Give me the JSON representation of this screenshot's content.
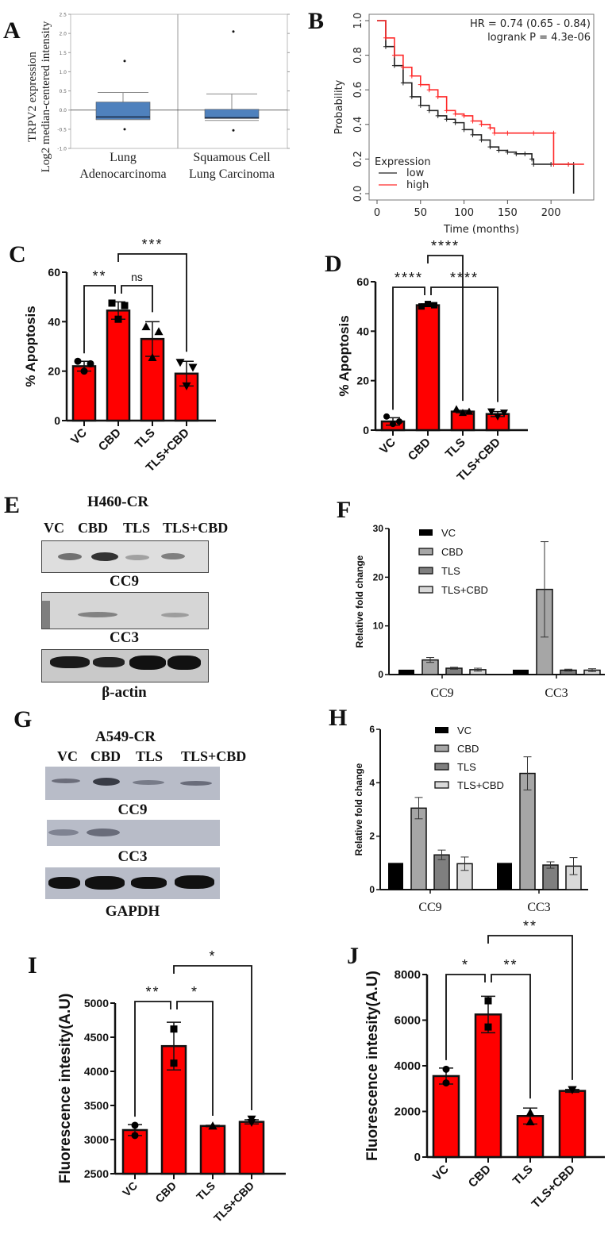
{
  "panels": {
    "A": {
      "label": "A"
    },
    "B": {
      "label": "B"
    },
    "C": {
      "label": "C"
    },
    "D": {
      "label": "D"
    },
    "E": {
      "label": "E"
    },
    "F": {
      "label": "F"
    },
    "G": {
      "label": "G"
    },
    "H": {
      "label": "H"
    },
    "I": {
      "label": "I"
    },
    "J": {
      "label": "J"
    }
  },
  "blots": {
    "E": {
      "title": "H460-CR",
      "lanes": [
        "VC",
        "CBD",
        "TLS",
        "TLS+CBD"
      ],
      "rows": [
        "CC9",
        "CC3",
        "β-actin"
      ]
    },
    "G": {
      "title": "A549-CR",
      "lanes": [
        "VC",
        "CBD",
        "TLS",
        "TLS+CBD"
      ],
      "rows": [
        "CC9",
        "CC3",
        "GAPDH"
      ]
    }
  },
  "colors": {
    "bar_red": "#ff0000",
    "km_low": "#222222",
    "km_high": "#ff2a2a",
    "box_fill": "#4f81bd",
    "vc": "#000000",
    "cbd": "#a6a6a6",
    "tls": "#7f7f7f",
    "tls_cbd": "#d9d9d9"
  },
  "chart_data": [
    {
      "id": "A",
      "type": "box",
      "title": "",
      "ylabel_line1": "TRPV2 expression",
      "ylabel_line2": "Log2 median-centered intensity",
      "categories": [
        "Lung Adenocarcinoma",
        "Squamous Cell Lung Carcinoma"
      ],
      "category_line1": [
        "Lung",
        "Squamous Cell"
      ],
      "category_line2": [
        "Adenocarcinoma",
        "Lung Carcinoma"
      ],
      "yticks": [
        "2.5",
        "2.0",
        "1.5",
        "1.0",
        "0.5",
        "0.0",
        "-0.5",
        "-1.0"
      ],
      "ylim": [
        -1.0,
        2.5
      ],
      "boxes": [
        {
          "min": -0.25,
          "q1": -0.25,
          "median": -0.18,
          "q3": 0.21,
          "max": 0.46,
          "outliers": [
            1.28,
            -0.5
          ]
        },
        {
          "min": -0.27,
          "q1": -0.22,
          "median": -0.2,
          "q3": 0.02,
          "max": 0.42,
          "outliers": [
            2.05,
            -0.53
          ]
        }
      ]
    },
    {
      "id": "B",
      "type": "line",
      "title": "",
      "xlabel": "Time (months)",
      "ylabel": "Probability",
      "xticks": [
        "0",
        "50",
        "100",
        "150",
        "200"
      ],
      "yticks": [
        "0.0",
        "0.2",
        "0.4",
        "0.6",
        "0.8",
        "1.0"
      ],
      "xlim": [
        0,
        240
      ],
      "ylim": [
        0,
        1.0
      ],
      "annotation_line1": "HR = 0.74 (0.65 - 0.84)",
      "annotation_line2": "logrank P = 4.3e-06",
      "legend_title": "Expression",
      "legend_position": "bottom-left",
      "series": [
        {
          "name": "low",
          "x": [
            0,
            10,
            20,
            30,
            40,
            50,
            60,
            70,
            80,
            90,
            100,
            110,
            120,
            130,
            140,
            150,
            160,
            170,
            178,
            180,
            200,
            220,
            226,
            226
          ],
          "y": [
            1.0,
            0.85,
            0.74,
            0.64,
            0.56,
            0.51,
            0.48,
            0.45,
            0.43,
            0.41,
            0.37,
            0.34,
            0.31,
            0.27,
            0.25,
            0.24,
            0.23,
            0.23,
            0.2,
            0.17,
            0.17,
            0.17,
            0.17,
            0.0
          ]
        },
        {
          "name": "high",
          "x": [
            0,
            10,
            20,
            30,
            40,
            50,
            60,
            70,
            80,
            90,
            100,
            110,
            120,
            130,
            135,
            150,
            180,
            203,
            203,
            220,
            238
          ],
          "y": [
            1.0,
            0.9,
            0.8,
            0.73,
            0.68,
            0.63,
            0.6,
            0.56,
            0.48,
            0.46,
            0.45,
            0.42,
            0.4,
            0.38,
            0.35,
            0.35,
            0.35,
            0.35,
            0.17,
            0.17,
            0.17
          ]
        }
      ]
    },
    {
      "id": "C",
      "type": "bar",
      "title": "",
      "ylabel": "% Apoptosis",
      "categories": [
        "VC",
        "CBD",
        "TLS",
        "TLS+CBD"
      ],
      "values": [
        22,
        44.5,
        33,
        19
      ],
      "errors": [
        2,
        3.5,
        7,
        5
      ],
      "points": [
        [
          24,
          20,
          23
        ],
        [
          47.5,
          41,
          46.5
        ],
        [
          38,
          25.5,
          36
        ],
        [
          23.5,
          14,
          21.5
        ]
      ],
      "markers": [
        "circle",
        "square",
        "triangle-up",
        "triangle-down"
      ],
      "yticks": [
        "0",
        "20",
        "40",
        "60"
      ],
      "ylim": [
        0,
        60
      ],
      "significance": [
        {
          "from": 0,
          "to": 1,
          "label": "**",
          "level": 1
        },
        {
          "from": 1,
          "to": 2,
          "label": "ns",
          "level": 1
        },
        {
          "from": 1,
          "to": 3,
          "label": "***",
          "level": 2
        }
      ]
    },
    {
      "id": "D",
      "type": "bar",
      "title": "",
      "ylabel": "% Apoptosis",
      "categories": [
        "VC",
        "CBD",
        "TLS",
        "TLS+CBD"
      ],
      "values": [
        3.5,
        50.5,
        7.5,
        6.5
      ],
      "errors": [
        1.5,
        0.5,
        0.5,
        1
      ],
      "points": [
        [
          5.5,
          2.5,
          3.5
        ],
        [
          50,
          51,
          50.5
        ],
        [
          8.5,
          7,
          7.5
        ],
        [
          7.5,
          5.5,
          7
        ]
      ],
      "markers": [
        "circle",
        "square",
        "triangle-up",
        "triangle-down"
      ],
      "yticks": [
        "0",
        "20",
        "40",
        "60"
      ],
      "ylim": [
        0,
        60
      ],
      "significance": [
        {
          "from": 0,
          "to": 1,
          "label": "****",
          "level": 1
        },
        {
          "from": 1,
          "to": 3,
          "label": "****",
          "level": 1
        },
        {
          "from": 1,
          "to": 2,
          "label": "****",
          "level": 2
        }
      ]
    },
    {
      "id": "F",
      "type": "bar",
      "title": "",
      "ylabel": "Relative fold change",
      "categories": [
        "CC9",
        "CC3"
      ],
      "yticks": [
        "0",
        "10",
        "20",
        "30"
      ],
      "ylim": [
        0,
        30
      ],
      "legend_position": "top-left",
      "series": [
        {
          "name": "VC",
          "values": [
            1.0,
            1.0
          ],
          "errors": [
            0,
            0
          ]
        },
        {
          "name": "CBD",
          "values": [
            3.0,
            17.5
          ],
          "errors": [
            0.5,
            9.8
          ]
        },
        {
          "name": "TLS",
          "values": [
            1.3,
            0.9
          ],
          "errors": [
            0.2,
            0.2
          ]
        },
        {
          "name": "TLS+CBD",
          "values": [
            1.0,
            0.9
          ],
          "errors": [
            0.3,
            0.3
          ]
        }
      ]
    },
    {
      "id": "H",
      "type": "bar",
      "title": "",
      "ylabel": "Relative fold change",
      "categories": [
        "CC9",
        "CC3"
      ],
      "yticks": [
        "0",
        "2",
        "4",
        "6"
      ],
      "ylim": [
        0,
        6
      ],
      "legend_position": "top-left",
      "series": [
        {
          "name": "VC",
          "values": [
            1.0,
            1.0
          ],
          "errors": [
            0,
            0
          ]
        },
        {
          "name": "CBD",
          "values": [
            3.05,
            4.35
          ],
          "errors": [
            0.4,
            0.62
          ]
        },
        {
          "name": "TLS",
          "values": [
            1.3,
            0.92
          ],
          "errors": [
            0.18,
            0.12
          ]
        },
        {
          "name": "TLS+CBD",
          "values": [
            0.97,
            0.88
          ],
          "errors": [
            0.25,
            0.32
          ]
        }
      ]
    },
    {
      "id": "I",
      "type": "bar",
      "title": "",
      "ylabel": "Fluorescence intesity(A.U)",
      "categories": [
        "VC",
        "CBD",
        "TLS",
        "TLS+CBD"
      ],
      "values": [
        3140,
        4370,
        3200,
        3260
      ],
      "errors": [
        80,
        350,
        10,
        30
      ],
      "points": [
        [
          3210,
          3060
        ],
        [
          4620,
          4120
        ],
        [
          3200,
          3200
        ],
        [
          3250,
          3300
        ]
      ],
      "markers": [
        "circle",
        "square",
        "triangle-up",
        "triangle-down"
      ],
      "yticks": [
        "2500",
        "3000",
        "3500",
        "4000",
        "4500",
        "5000"
      ],
      "ylim": [
        2500,
        5000
      ],
      "significance": [
        {
          "from": 0,
          "to": 1,
          "label": "**",
          "level": 1
        },
        {
          "from": 1,
          "to": 2,
          "label": "*",
          "level": 1
        },
        {
          "from": 1,
          "to": 3,
          "label": "*",
          "level": 2
        }
      ]
    },
    {
      "id": "J",
      "type": "bar",
      "title": "",
      "ylabel": "Fluorescence intesity(A.U)",
      "categories": [
        "VC",
        "CBD",
        "TLS",
        "TLS+CBD"
      ],
      "values": [
        3550,
        6250,
        1800,
        2900
      ],
      "errors": [
        350,
        800,
        350,
        60
      ],
      "points": [
        [
          3850,
          3250
        ],
        [
          6850,
          5700
        ],
        [
          1950,
          1550
        ],
        [
          2950,
          2950
        ]
      ],
      "markers": [
        "circle",
        "square",
        "triangle-up",
        "triangle-down"
      ],
      "yticks": [
        "0",
        "2000",
        "4000",
        "6000",
        "8000"
      ],
      "ylim": [
        0,
        8000
      ],
      "significance": [
        {
          "from": 0,
          "to": 1,
          "label": "*",
          "level": 1
        },
        {
          "from": 1,
          "to": 2,
          "label": "**",
          "level": 1
        },
        {
          "from": 1,
          "to": 3,
          "label": "**",
          "level": 2
        }
      ]
    }
  ]
}
